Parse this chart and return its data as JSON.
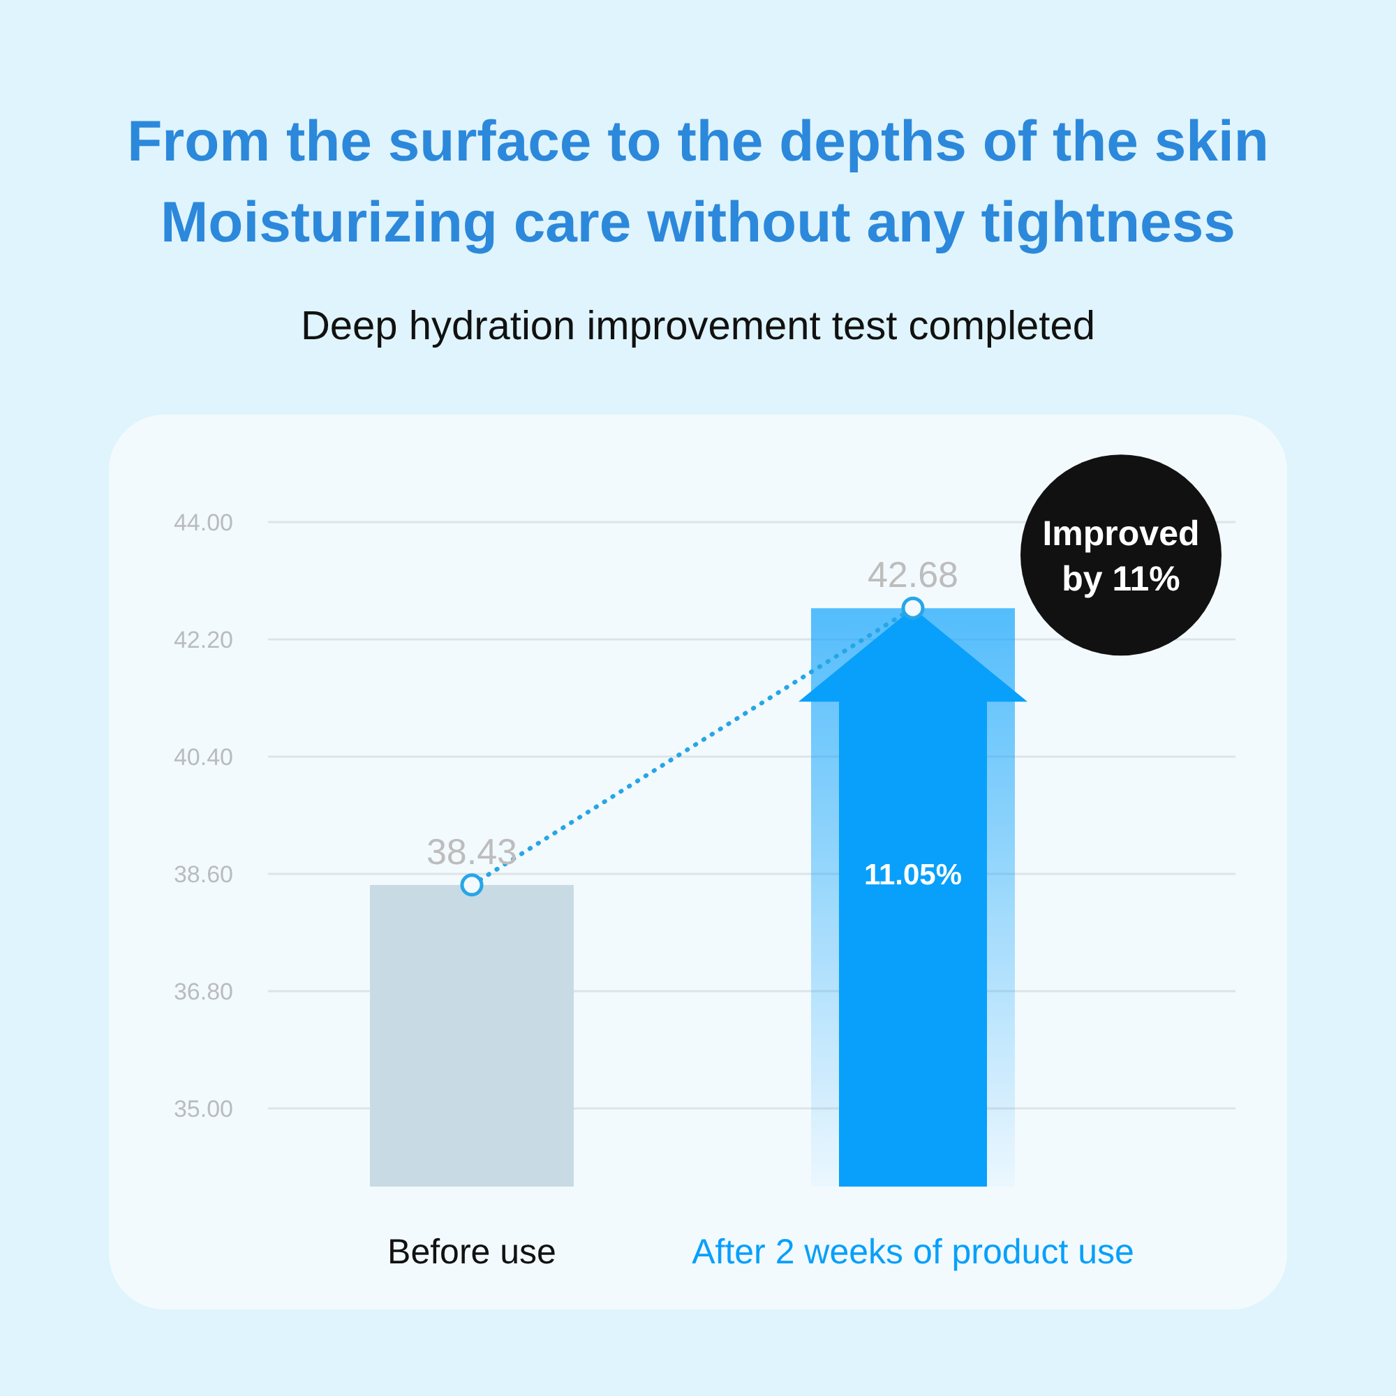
{
  "chart_data": {
    "type": "bar",
    "title": "From the surface to the depths of the skin\nMoisturizing care without any tightness",
    "subtitle": "Deep hydration improvement test completed",
    "categories": [
      "Before use",
      "After 2 weeks of product use"
    ],
    "series": [
      {
        "values": [
          38.43,
          42.68
        ],
        "colors": [
          "#c8dae3",
          "#08a0fa"
        ]
      },
      {
        "type": "line",
        "values": [
          38.43,
          42.68
        ],
        "value_labels": [
          "38.43",
          "42.68"
        ],
        "color": "#27a6e6",
        "line_style": "dotted",
        "marker": "circle"
      }
    ],
    "ylim": [
      33.8,
      44
    ],
    "yticks": [
      {
        "value": 35,
        "label": "35.00"
      },
      {
        "value": 36.8,
        "label": "36.80"
      },
      {
        "value": 38.6,
        "label": "38.60"
      },
      {
        "value": 40.4,
        "label": "40.40"
      },
      {
        "value": 42.2,
        "label": "42.20"
      },
      {
        "value": 44,
        "label": "44.00"
      }
    ],
    "grid": "y",
    "annotations": [
      "11.05%",
      "Improved by 11%"
    ]
  }
}
